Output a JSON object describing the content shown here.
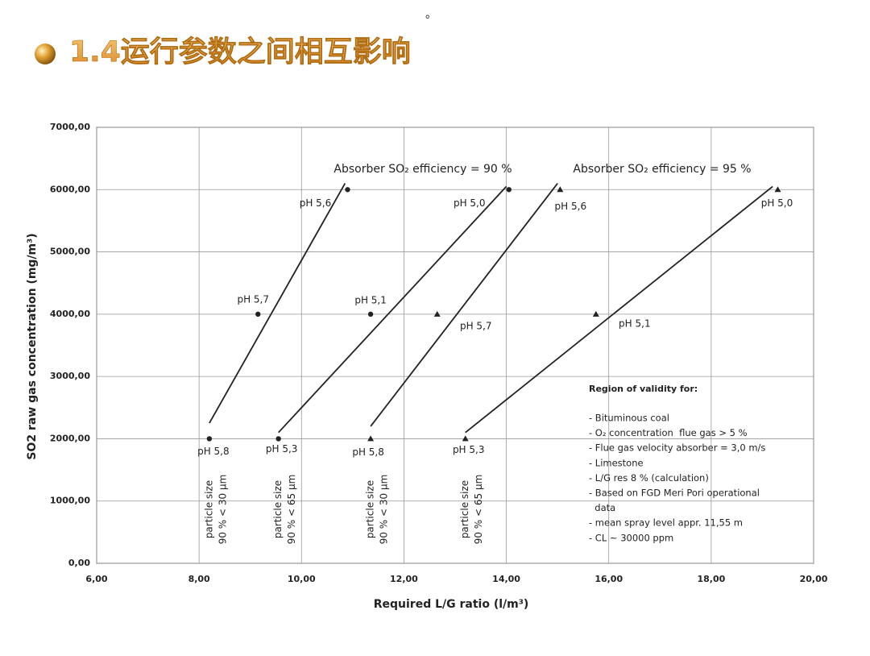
{
  "top_mark": "。",
  "title": "1.4运行参数之间相互影响",
  "chart_data": {
    "type": "scatter",
    "x_label": "Required L/G ratio (l/m³)",
    "y_label": "SO2 raw gas concentration (mg/m³)",
    "xlim": [
      6,
      20
    ],
    "ylim": [
      0,
      7000
    ],
    "xticks": [
      {
        "value": 6,
        "label": "6,00"
      },
      {
        "value": 8,
        "label": "8,00"
      },
      {
        "value": 10,
        "label": "10,00"
      },
      {
        "value": 12,
        "label": "12,00"
      },
      {
        "value": 14,
        "label": "14,00"
      },
      {
        "value": 16,
        "label": "16,00"
      },
      {
        "value": 18,
        "label": "18,00"
      },
      {
        "value": 20,
        "label": "20,00"
      }
    ],
    "yticks": [
      {
        "value": 0,
        "label": "0,00"
      },
      {
        "value": 1000,
        "label": "1000,00"
      },
      {
        "value": 2000,
        "label": "2000,00"
      },
      {
        "value": 3000,
        "label": "3000,00"
      },
      {
        "value": 4000,
        "label": "4000,00"
      },
      {
        "value": 5000,
        "label": "5000,00"
      },
      {
        "value": 6000,
        "label": "6000,00"
      },
      {
        "value": 7000,
        "label": "7000,00"
      }
    ],
    "grid": true,
    "series": [
      {
        "color": "#222222",
        "marker": "circle",
        "x": [
          8.2,
          9.15,
          10.9
        ],
        "values": [
          2000,
          4000,
          6000
        ],
        "point_labels": [
          "pH 5,8",
          "pH 5,7",
          "pH 5,6"
        ],
        "trend": {
          "x": [
            8.2,
            10.85
          ],
          "y": [
            2250,
            6100
          ]
        },
        "note": [
          "particle size",
          "90 % < 30 µm"
        ]
      },
      {
        "color": "#222222",
        "marker": "circle",
        "x": [
          9.55,
          11.35,
          14.05
        ],
        "values": [
          2000,
          4000,
          6000
        ],
        "point_labels": [
          "pH 5,3",
          "pH  5,1",
          "pH 5,0"
        ],
        "trend": {
          "x": [
            9.55,
            14.0
          ],
          "y": [
            2100,
            6050
          ]
        },
        "note": [
          "particle size",
          "90 % < 65 µm"
        ]
      },
      {
        "color": "#222222",
        "marker": "triangle",
        "x": [
          11.35,
          12.65,
          15.05
        ],
        "values": [
          2000,
          4000,
          6000
        ],
        "point_labels": [
          "pH 5,8",
          "pH 5,7",
          "pH 5,6"
        ],
        "trend": {
          "x": [
            11.35,
            15.0
          ],
          "y": [
            2200,
            6100
          ]
        },
        "note": [
          "particle size",
          "90 % < 30 µm"
        ]
      },
      {
        "color": "#222222",
        "marker": "triangle",
        "x": [
          13.2,
          15.75,
          19.3
        ],
        "values": [
          2000,
          4000,
          6000
        ],
        "point_labels": [
          "pH 5,3",
          "pH 5,1",
          "pH 5,0"
        ],
        "trend": {
          "x": [
            13.2,
            19.2
          ],
          "y": [
            2100,
            6050
          ]
        },
        "note": [
          "particle size",
          "90 % < 65 µm"
        ]
      }
    ],
    "annotations": [
      "Absorber SO₂ efficiency = 90 %",
      "Absorber SO₂ efficiency = 95 %"
    ],
    "validity": {
      "heading": "Region of validity for:",
      "items": [
        "- Bituminous coal",
        "- O₂ concentration  flue gas > 5 %",
        "- Flue gas velocity absorber = 3,0 m/s",
        "- Limestone",
        "- L/G res 8 % (calculation)",
        "- Based on FGD Meri Pori operational",
        "  data",
        "- mean spray level appr. 11,55 m",
        "- CL ~ 30000 ppm"
      ]
    }
  }
}
